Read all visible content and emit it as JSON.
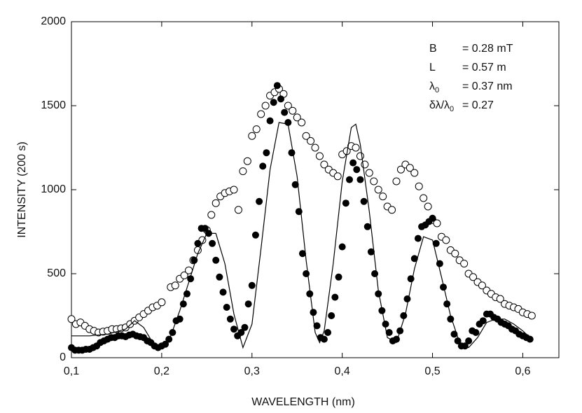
{
  "chart_data": {
    "type": "scatter",
    "x_label": "WAVELENGTH  (nm)",
    "y_label": "INTENSITY  (200 s)",
    "xlim": [
      0.1,
      0.64
    ],
    "ylim": [
      0,
      2000
    ],
    "xticks": [
      {
        "value": 0.1,
        "label": "0,1"
      },
      {
        "value": 0.2,
        "label": "0,2"
      },
      {
        "value": 0.3,
        "label": "0,3"
      },
      {
        "value": 0.4,
        "label": "0,4"
      },
      {
        "value": 0.5,
        "label": "0,5"
      },
      {
        "value": 0.6,
        "label": "0,6"
      }
    ],
    "yticks": [
      0,
      500,
      1000,
      1500,
      2000
    ],
    "annotations": [
      {
        "label": "B",
        "value": "= 0.28 mT"
      },
      {
        "label": "L",
        "value": "= 0.57 m"
      },
      {
        "label": "λ",
        "sub": "0",
        "value": "= 0.37 nm"
      },
      {
        "label": "δλ/λ",
        "sub": "0",
        "value": "= 0.27"
      }
    ],
    "series": [
      {
        "marker": "open",
        "color": "#000000",
        "x": [
          0.1,
          0.105,
          0.11,
          0.115,
          0.12,
          0.125,
          0.13,
          0.135,
          0.14,
          0.145,
          0.15,
          0.155,
          0.16,
          0.165,
          0.17,
          0.175,
          0.18,
          0.185,
          0.19,
          0.195,
          0.2,
          0.21,
          0.215,
          0.22,
          0.225,
          0.23,
          0.235,
          0.24,
          0.245,
          0.25,
          0.255,
          0.26,
          0.265,
          0.27,
          0.275,
          0.28,
          0.285,
          0.29,
          0.295,
          0.3,
          0.305,
          0.31,
          0.315,
          0.32,
          0.325,
          0.33,
          0.335,
          0.34,
          0.345,
          0.35,
          0.355,
          0.36,
          0.365,
          0.37,
          0.375,
          0.38,
          0.385,
          0.39,
          0.395,
          0.4,
          0.405,
          0.41,
          0.415,
          0.42,
          0.425,
          0.43,
          0.435,
          0.44,
          0.445,
          0.45,
          0.455,
          0.46,
          0.465,
          0.47,
          0.475,
          0.48,
          0.485,
          0.49,
          0.495,
          0.5,
          0.505,
          0.51,
          0.515,
          0.52,
          0.525,
          0.53,
          0.535,
          0.54,
          0.545,
          0.55,
          0.555,
          0.56,
          0.565,
          0.57,
          0.575,
          0.58,
          0.585,
          0.59,
          0.595,
          0.6,
          0.605,
          0.61
        ],
        "values": [
          230,
          200,
          210,
          190,
          170,
          160,
          150,
          155,
          160,
          170,
          170,
          175,
          180,
          200,
          220,
          240,
          260,
          280,
          300,
          310,
          330,
          420,
          430,
          470,
          490,
          520,
          580,
          640,
          700,
          760,
          850,
          920,
          960,
          980,
          990,
          1000,
          880,
          1110,
          1170,
          1320,
          1360,
          1450,
          1500,
          1560,
          1580,
          1600,
          1570,
          1500,
          1470,
          1430,
          1400,
          1320,
          1290,
          1250,
          1200,
          1150,
          1120,
          1100,
          1080,
          1210,
          1230,
          1260,
          1250,
          1200,
          1150,
          1100,
          1050,
          1000,
          960,
          900,
          880,
          1050,
          1120,
          1150,
          1130,
          1100,
          1020,
          950,
          900,
          820,
          800,
          720,
          700,
          640,
          620,
          580,
          560,
          500,
          480,
          450,
          430,
          400,
          380,
          360,
          350,
          320,
          310,
          300,
          290,
          270,
          260,
          250
        ]
      },
      {
        "marker": "filled",
        "color": "#000000",
        "x": [
          0.1,
          0.104,
          0.108,
          0.112,
          0.116,
          0.12,
          0.124,
          0.128,
          0.132,
          0.136,
          0.14,
          0.144,
          0.148,
          0.152,
          0.156,
          0.16,
          0.164,
          0.168,
          0.172,
          0.176,
          0.18,
          0.184,
          0.188,
          0.192,
          0.196,
          0.2,
          0.204,
          0.208,
          0.212,
          0.216,
          0.22,
          0.224,
          0.228,
          0.232,
          0.236,
          0.24,
          0.244,
          0.248,
          0.252,
          0.256,
          0.26,
          0.264,
          0.268,
          0.272,
          0.276,
          0.28,
          0.284,
          0.288,
          0.292,
          0.296,
          0.3,
          0.304,
          0.308,
          0.312,
          0.316,
          0.32,
          0.324,
          0.328,
          0.332,
          0.336,
          0.34,
          0.344,
          0.348,
          0.352,
          0.356,
          0.36,
          0.364,
          0.368,
          0.372,
          0.376,
          0.38,
          0.384,
          0.388,
          0.392,
          0.396,
          0.4,
          0.404,
          0.408,
          0.412,
          0.416,
          0.42,
          0.424,
          0.428,
          0.432,
          0.436,
          0.44,
          0.444,
          0.448,
          0.452,
          0.456,
          0.46,
          0.464,
          0.468,
          0.472,
          0.476,
          0.48,
          0.484,
          0.488,
          0.492,
          0.496,
          0.5,
          0.504,
          0.508,
          0.512,
          0.516,
          0.52,
          0.524,
          0.528,
          0.532,
          0.536,
          0.54,
          0.544,
          0.548,
          0.552,
          0.556,
          0.56,
          0.564,
          0.568,
          0.572,
          0.576,
          0.58,
          0.584,
          0.588,
          0.592,
          0.596,
          0.6,
          0.604,
          0.608
        ],
        "values": [
          60,
          45,
          45,
          45,
          50,
          50,
          60,
          70,
          90,
          100,
          110,
          120,
          120,
          130,
          130,
          125,
          135,
          140,
          130,
          125,
          120,
          100,
          90,
          70,
          60,
          70,
          80,
          110,
          150,
          220,
          230,
          320,
          380,
          470,
          580,
          680,
          770,
          770,
          740,
          680,
          580,
          480,
          390,
          300,
          230,
          170,
          130,
          150,
          180,
          320,
          430,
          730,
          930,
          1140,
          1220,
          1410,
          1520,
          1620,
          1540,
          1460,
          1400,
          1220,
          1030,
          870,
          620,
          500,
          380,
          270,
          190,
          120,
          110,
          150,
          250,
          360,
          480,
          660,
          920,
          1060,
          1160,
          1120,
          1060,
          930,
          780,
          630,
          500,
          380,
          280,
          200,
          150,
          100,
          110,
          160,
          250,
          350,
          470,
          590,
          710,
          780,
          790,
          810,
          830,
          680,
          560,
          420,
          320,
          230,
          140,
          100,
          70,
          70,
          100,
          160,
          150,
          200,
          220,
          260,
          260,
          240,
          230,
          210,
          200,
          190,
          170,
          160,
          140,
          130,
          120,
          110
        ]
      },
      {
        "marker": "line",
        "color": "#000000",
        "x": [
          0.1,
          0.12,
          0.14,
          0.16,
          0.17,
          0.18,
          0.19,
          0.2,
          0.21,
          0.22,
          0.23,
          0.24,
          0.25,
          0.26,
          0.27,
          0.28,
          0.29,
          0.3,
          0.31,
          0.32,
          0.33,
          0.34,
          0.35,
          0.36,
          0.37,
          0.375,
          0.38,
          0.39,
          0.4,
          0.41,
          0.415,
          0.42,
          0.43,
          0.44,
          0.45,
          0.46,
          0.47,
          0.48,
          0.49,
          0.5,
          0.51,
          0.52,
          0.53,
          0.54,
          0.55,
          0.56,
          0.57,
          0.58,
          0.59,
          0.6,
          0.61
        ],
        "values": [
          130,
          130,
          140,
          170,
          220,
          180,
          90,
          60,
          130,
          280,
          450,
          620,
          740,
          740,
          560,
          260,
          60,
          200,
          650,
          1120,
          1400,
          1390,
          1080,
          580,
          150,
          90,
          160,
          560,
          1050,
          1370,
          1390,
          1270,
          870,
          400,
          120,
          90,
          260,
          530,
          720,
          700,
          480,
          250,
          90,
          60,
          120,
          210,
          230,
          230,
          200,
          160,
          110
        ]
      }
    ]
  }
}
